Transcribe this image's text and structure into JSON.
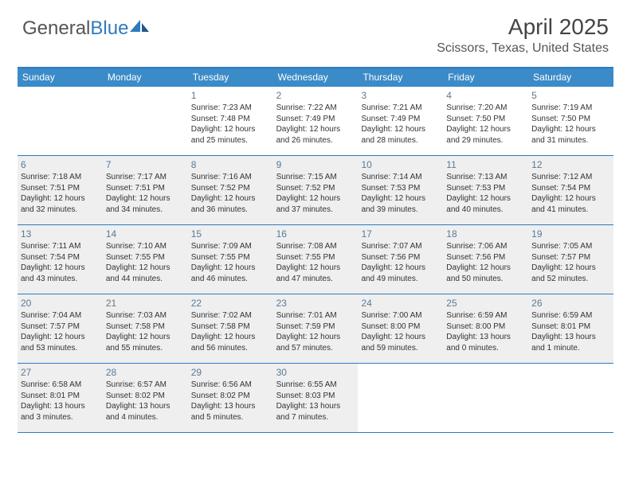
{
  "logo": {
    "text1": "General",
    "text2": "Blue"
  },
  "title": "April 2025",
  "location": "Scissors, Texas, United States",
  "colors": {
    "header_bg": "#3b8bc9",
    "border": "#2f7bbf",
    "shaded": "#efefef",
    "daynum": "#5a7a94",
    "text": "#333333",
    "bg": "#ffffff"
  },
  "weekdays": [
    "Sunday",
    "Monday",
    "Tuesday",
    "Wednesday",
    "Thursday",
    "Friday",
    "Saturday"
  ],
  "weeks": [
    [
      {
        "n": "",
        "lines": [],
        "shaded": false
      },
      {
        "n": "",
        "lines": [],
        "shaded": false
      },
      {
        "n": "1",
        "lines": [
          "Sunrise: 7:23 AM",
          "Sunset: 7:48 PM",
          "Daylight: 12 hours",
          "and 25 minutes."
        ],
        "shaded": false
      },
      {
        "n": "2",
        "lines": [
          "Sunrise: 7:22 AM",
          "Sunset: 7:49 PM",
          "Daylight: 12 hours",
          "and 26 minutes."
        ],
        "shaded": false
      },
      {
        "n": "3",
        "lines": [
          "Sunrise: 7:21 AM",
          "Sunset: 7:49 PM",
          "Daylight: 12 hours",
          "and 28 minutes."
        ],
        "shaded": false
      },
      {
        "n": "4",
        "lines": [
          "Sunrise: 7:20 AM",
          "Sunset: 7:50 PM",
          "Daylight: 12 hours",
          "and 29 minutes."
        ],
        "shaded": false
      },
      {
        "n": "5",
        "lines": [
          "Sunrise: 7:19 AM",
          "Sunset: 7:50 PM",
          "Daylight: 12 hours",
          "and 31 minutes."
        ],
        "shaded": false
      }
    ],
    [
      {
        "n": "6",
        "lines": [
          "Sunrise: 7:18 AM",
          "Sunset: 7:51 PM",
          "Daylight: 12 hours",
          "and 32 minutes."
        ],
        "shaded": true
      },
      {
        "n": "7",
        "lines": [
          "Sunrise: 7:17 AM",
          "Sunset: 7:51 PM",
          "Daylight: 12 hours",
          "and 34 minutes."
        ],
        "shaded": true
      },
      {
        "n": "8",
        "lines": [
          "Sunrise: 7:16 AM",
          "Sunset: 7:52 PM",
          "Daylight: 12 hours",
          "and 36 minutes."
        ],
        "shaded": true
      },
      {
        "n": "9",
        "lines": [
          "Sunrise: 7:15 AM",
          "Sunset: 7:52 PM",
          "Daylight: 12 hours",
          "and 37 minutes."
        ],
        "shaded": true
      },
      {
        "n": "10",
        "lines": [
          "Sunrise: 7:14 AM",
          "Sunset: 7:53 PM",
          "Daylight: 12 hours",
          "and 39 minutes."
        ],
        "shaded": true
      },
      {
        "n": "11",
        "lines": [
          "Sunrise: 7:13 AM",
          "Sunset: 7:53 PM",
          "Daylight: 12 hours",
          "and 40 minutes."
        ],
        "shaded": true
      },
      {
        "n": "12",
        "lines": [
          "Sunrise: 7:12 AM",
          "Sunset: 7:54 PM",
          "Daylight: 12 hours",
          "and 41 minutes."
        ],
        "shaded": true
      }
    ],
    [
      {
        "n": "13",
        "lines": [
          "Sunrise: 7:11 AM",
          "Sunset: 7:54 PM",
          "Daylight: 12 hours",
          "and 43 minutes."
        ],
        "shaded": true
      },
      {
        "n": "14",
        "lines": [
          "Sunrise: 7:10 AM",
          "Sunset: 7:55 PM",
          "Daylight: 12 hours",
          "and 44 minutes."
        ],
        "shaded": true
      },
      {
        "n": "15",
        "lines": [
          "Sunrise: 7:09 AM",
          "Sunset: 7:55 PM",
          "Daylight: 12 hours",
          "and 46 minutes."
        ],
        "shaded": true
      },
      {
        "n": "16",
        "lines": [
          "Sunrise: 7:08 AM",
          "Sunset: 7:55 PM",
          "Daylight: 12 hours",
          "and 47 minutes."
        ],
        "shaded": true
      },
      {
        "n": "17",
        "lines": [
          "Sunrise: 7:07 AM",
          "Sunset: 7:56 PM",
          "Daylight: 12 hours",
          "and 49 minutes."
        ],
        "shaded": true
      },
      {
        "n": "18",
        "lines": [
          "Sunrise: 7:06 AM",
          "Sunset: 7:56 PM",
          "Daylight: 12 hours",
          "and 50 minutes."
        ],
        "shaded": true
      },
      {
        "n": "19",
        "lines": [
          "Sunrise: 7:05 AM",
          "Sunset: 7:57 PM",
          "Daylight: 12 hours",
          "and 52 minutes."
        ],
        "shaded": true
      }
    ],
    [
      {
        "n": "20",
        "lines": [
          "Sunrise: 7:04 AM",
          "Sunset: 7:57 PM",
          "Daylight: 12 hours",
          "and 53 minutes."
        ],
        "shaded": true
      },
      {
        "n": "21",
        "lines": [
          "Sunrise: 7:03 AM",
          "Sunset: 7:58 PM",
          "Daylight: 12 hours",
          "and 55 minutes."
        ],
        "shaded": true
      },
      {
        "n": "22",
        "lines": [
          "Sunrise: 7:02 AM",
          "Sunset: 7:58 PM",
          "Daylight: 12 hours",
          "and 56 minutes."
        ],
        "shaded": true
      },
      {
        "n": "23",
        "lines": [
          "Sunrise: 7:01 AM",
          "Sunset: 7:59 PM",
          "Daylight: 12 hours",
          "and 57 minutes."
        ],
        "shaded": true
      },
      {
        "n": "24",
        "lines": [
          "Sunrise: 7:00 AM",
          "Sunset: 8:00 PM",
          "Daylight: 12 hours",
          "and 59 minutes."
        ],
        "shaded": true
      },
      {
        "n": "25",
        "lines": [
          "Sunrise: 6:59 AM",
          "Sunset: 8:00 PM",
          "Daylight: 13 hours",
          "and 0 minutes."
        ],
        "shaded": true
      },
      {
        "n": "26",
        "lines": [
          "Sunrise: 6:59 AM",
          "Sunset: 8:01 PM",
          "Daylight: 13 hours",
          "and 1 minute."
        ],
        "shaded": true
      }
    ],
    [
      {
        "n": "27",
        "lines": [
          "Sunrise: 6:58 AM",
          "Sunset: 8:01 PM",
          "Daylight: 13 hours",
          "and 3 minutes."
        ],
        "shaded": true
      },
      {
        "n": "28",
        "lines": [
          "Sunrise: 6:57 AM",
          "Sunset: 8:02 PM",
          "Daylight: 13 hours",
          "and 4 minutes."
        ],
        "shaded": true
      },
      {
        "n": "29",
        "lines": [
          "Sunrise: 6:56 AM",
          "Sunset: 8:02 PM",
          "Daylight: 13 hours",
          "and 5 minutes."
        ],
        "shaded": true
      },
      {
        "n": "30",
        "lines": [
          "Sunrise: 6:55 AM",
          "Sunset: 8:03 PM",
          "Daylight: 13 hours",
          "and 7 minutes."
        ],
        "shaded": true
      },
      {
        "n": "",
        "lines": [],
        "shaded": false
      },
      {
        "n": "",
        "lines": [],
        "shaded": false
      },
      {
        "n": "",
        "lines": [],
        "shaded": false
      }
    ]
  ]
}
